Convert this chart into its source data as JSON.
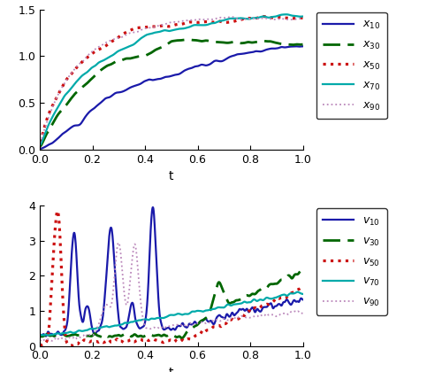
{
  "upper_ylim": [
    0,
    1.5
  ],
  "lower_ylim": [
    0,
    4
  ],
  "xlim": [
    0,
    1
  ],
  "upper_yticks": [
    0,
    0.5,
    1.0,
    1.5
  ],
  "lower_yticks": [
    0,
    1,
    2,
    3,
    4
  ],
  "xticks": [
    0,
    0.2,
    0.4,
    0.6,
    0.8,
    1.0
  ],
  "colors": {
    "x10": "#1a1aaa",
    "x30": "#006600",
    "x50": "#cc1111",
    "x70": "#00aaaa",
    "x90": "#bb88bb",
    "v10": "#1a1aaa",
    "v30": "#006600",
    "v50": "#cc1111",
    "v70": "#00aaaa",
    "v90": "#bb88bb"
  },
  "xlabel": "t",
  "figsize": [
    5.0,
    4.2
  ],
  "dpi": 100
}
